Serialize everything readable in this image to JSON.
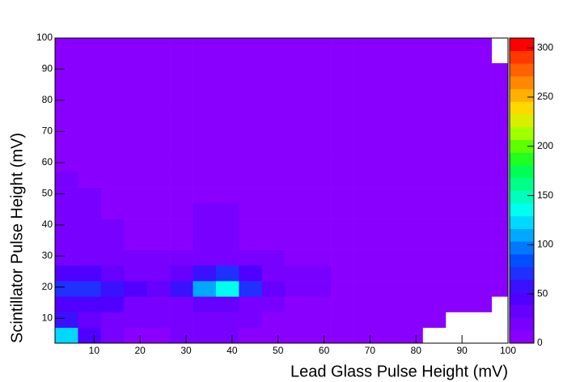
{
  "chart_data": {
    "type": "heatmap",
    "x_label": "Lead Glass Pulse Height (mV)",
    "y_label": "Scintillator Pulse Height  (mV)",
    "xlim": [
      1.5,
      100
    ],
    "ylim": [
      2,
      100
    ],
    "xticks": [
      10,
      20,
      30,
      40,
      50,
      60,
      70,
      80,
      90,
      100
    ],
    "yticks": [
      10,
      20,
      30,
      40,
      50,
      60,
      70,
      80,
      90,
      100
    ],
    "xbins": [
      1.5,
      6.5,
      11.5,
      16.5,
      21.5,
      26.5,
      31.5,
      36.5,
      41.5,
      46.5,
      51.5,
      56.5,
      61.5,
      66.5,
      71.5,
      76.5,
      81.5,
      86.5,
      91.5,
      96.5,
      100
    ],
    "ybins": [
      2,
      7,
      12,
      17,
      22,
      27,
      32,
      37,
      42,
      47,
      52,
      57,
      62,
      67,
      72,
      77,
      82,
      87,
      92,
      97,
      100
    ],
    "zlim": [
      0,
      310
    ],
    "zticks": [
      0,
      50,
      100,
      150,
      200,
      250,
      300
    ],
    "palette": [
      "#8a00ff",
      "#7800ff",
      "#6600ff",
      "#5000ff",
      "#3a10ff",
      "#2030ff",
      "#0050ff",
      "#0078ff",
      "#00a8ff",
      "#00d8ff",
      "#00ffee",
      "#00ffbb",
      "#00ff88",
      "#00ff55",
      "#20ff20",
      "#60ff00",
      "#a0ff00",
      "#d8f000",
      "#ffd800",
      "#ffb000",
      "#ff8800",
      "#ff6000",
      "#ff3800",
      "#ff0000"
    ],
    "values": [
      [
        120,
        40,
        15,
        12,
        12,
        14,
        16,
        16,
        12,
        8,
        5,
        3,
        2,
        1,
        1,
        1,
        0,
        0,
        0,
        0
      ],
      [
        60,
        30,
        20,
        14,
        14,
        16,
        18,
        18,
        14,
        10,
        6,
        4,
        3,
        2,
        2,
        1,
        1,
        0,
        0,
        0
      ],
      [
        45,
        40,
        45,
        20,
        18,
        22,
        28,
        28,
        20,
        14,
        10,
        7,
        6,
        5,
        4,
        3,
        2,
        1,
        1,
        0
      ],
      [
        70,
        75,
        60,
        40,
        35,
        60,
        110,
        140,
        70,
        30,
        18,
        14,
        12,
        10,
        8,
        6,
        3,
        2,
        1,
        1
      ],
      [
        50,
        45,
        35,
        25,
        22,
        35,
        60,
        70,
        40,
        22,
        16,
        14,
        12,
        12,
        10,
        8,
        4,
        2,
        1,
        1
      ],
      [
        25,
        22,
        18,
        14,
        14,
        16,
        20,
        22,
        18,
        14,
        12,
        12,
        11,
        11,
        10,
        9,
        5,
        2,
        1,
        1
      ],
      [
        18,
        16,
        14,
        12,
        12,
        12,
        14,
        14,
        12,
        12,
        12,
        11,
        11,
        11,
        10,
        10,
        6,
        2,
        1,
        1
      ],
      [
        20,
        18,
        14,
        12,
        12,
        12,
        14,
        14,
        12,
        12,
        12,
        12,
        11,
        11,
        11,
        10,
        6,
        2,
        1,
        1
      ],
      [
        16,
        14,
        12,
        12,
        12,
        12,
        13,
        13,
        12,
        12,
        12,
        12,
        11,
        11,
        11,
        10,
        6,
        2,
        1,
        1
      ],
      [
        14,
        13,
        12,
        12,
        12,
        12,
        12,
        12,
        12,
        12,
        12,
        12,
        11,
        11,
        11,
        10,
        6,
        2,
        1,
        1
      ],
      [
        13,
        12,
        12,
        12,
        12,
        12,
        12,
        12,
        12,
        12,
        11,
        11,
        11,
        11,
        10,
        8,
        4,
        2,
        1,
        1
      ],
      [
        12,
        12,
        12,
        12,
        12,
        12,
        12,
        12,
        12,
        11,
        11,
        11,
        10,
        10,
        9,
        7,
        3,
        2,
        1,
        1
      ],
      [
        11,
        11,
        11,
        11,
        11,
        11,
        11,
        11,
        11,
        10,
        10,
        10,
        9,
        9,
        8,
        6,
        3,
        2,
        1,
        1
      ],
      [
        10,
        10,
        10,
        10,
        10,
        10,
        10,
        10,
        10,
        9,
        9,
        9,
        8,
        8,
        7,
        6,
        3,
        2,
        1,
        1
      ],
      [
        9,
        9,
        9,
        9,
        9,
        9,
        9,
        9,
        9,
        8,
        8,
        8,
        7,
        7,
        6,
        5,
        3,
        2,
        1,
        1
      ],
      [
        8,
        8,
        8,
        8,
        8,
        8,
        7,
        6,
        5,
        4,
        4,
        4,
        4,
        4,
        4,
        4,
        3,
        2,
        1,
        1
      ],
      [
        7,
        7,
        7,
        7,
        7,
        6,
        5,
        4,
        3,
        3,
        3,
        3,
        3,
        3,
        3,
        3,
        2,
        1,
        1,
        1
      ],
      [
        6,
        6,
        6,
        6,
        6,
        5,
        4,
        3,
        2,
        2,
        2,
        2,
        2,
        2,
        2,
        2,
        2,
        1,
        1,
        1
      ],
      [
        6,
        6,
        6,
        6,
        5,
        4,
        3,
        2,
        2,
        2,
        2,
        2,
        2,
        2,
        2,
        2,
        1,
        1,
        1,
        0
      ],
      [
        6,
        6,
        6,
        5,
        5,
        4,
        3,
        2,
        2,
        2,
        2,
        2,
        2,
        2,
        2,
        2,
        1,
        1,
        1,
        0
      ]
    ]
  }
}
